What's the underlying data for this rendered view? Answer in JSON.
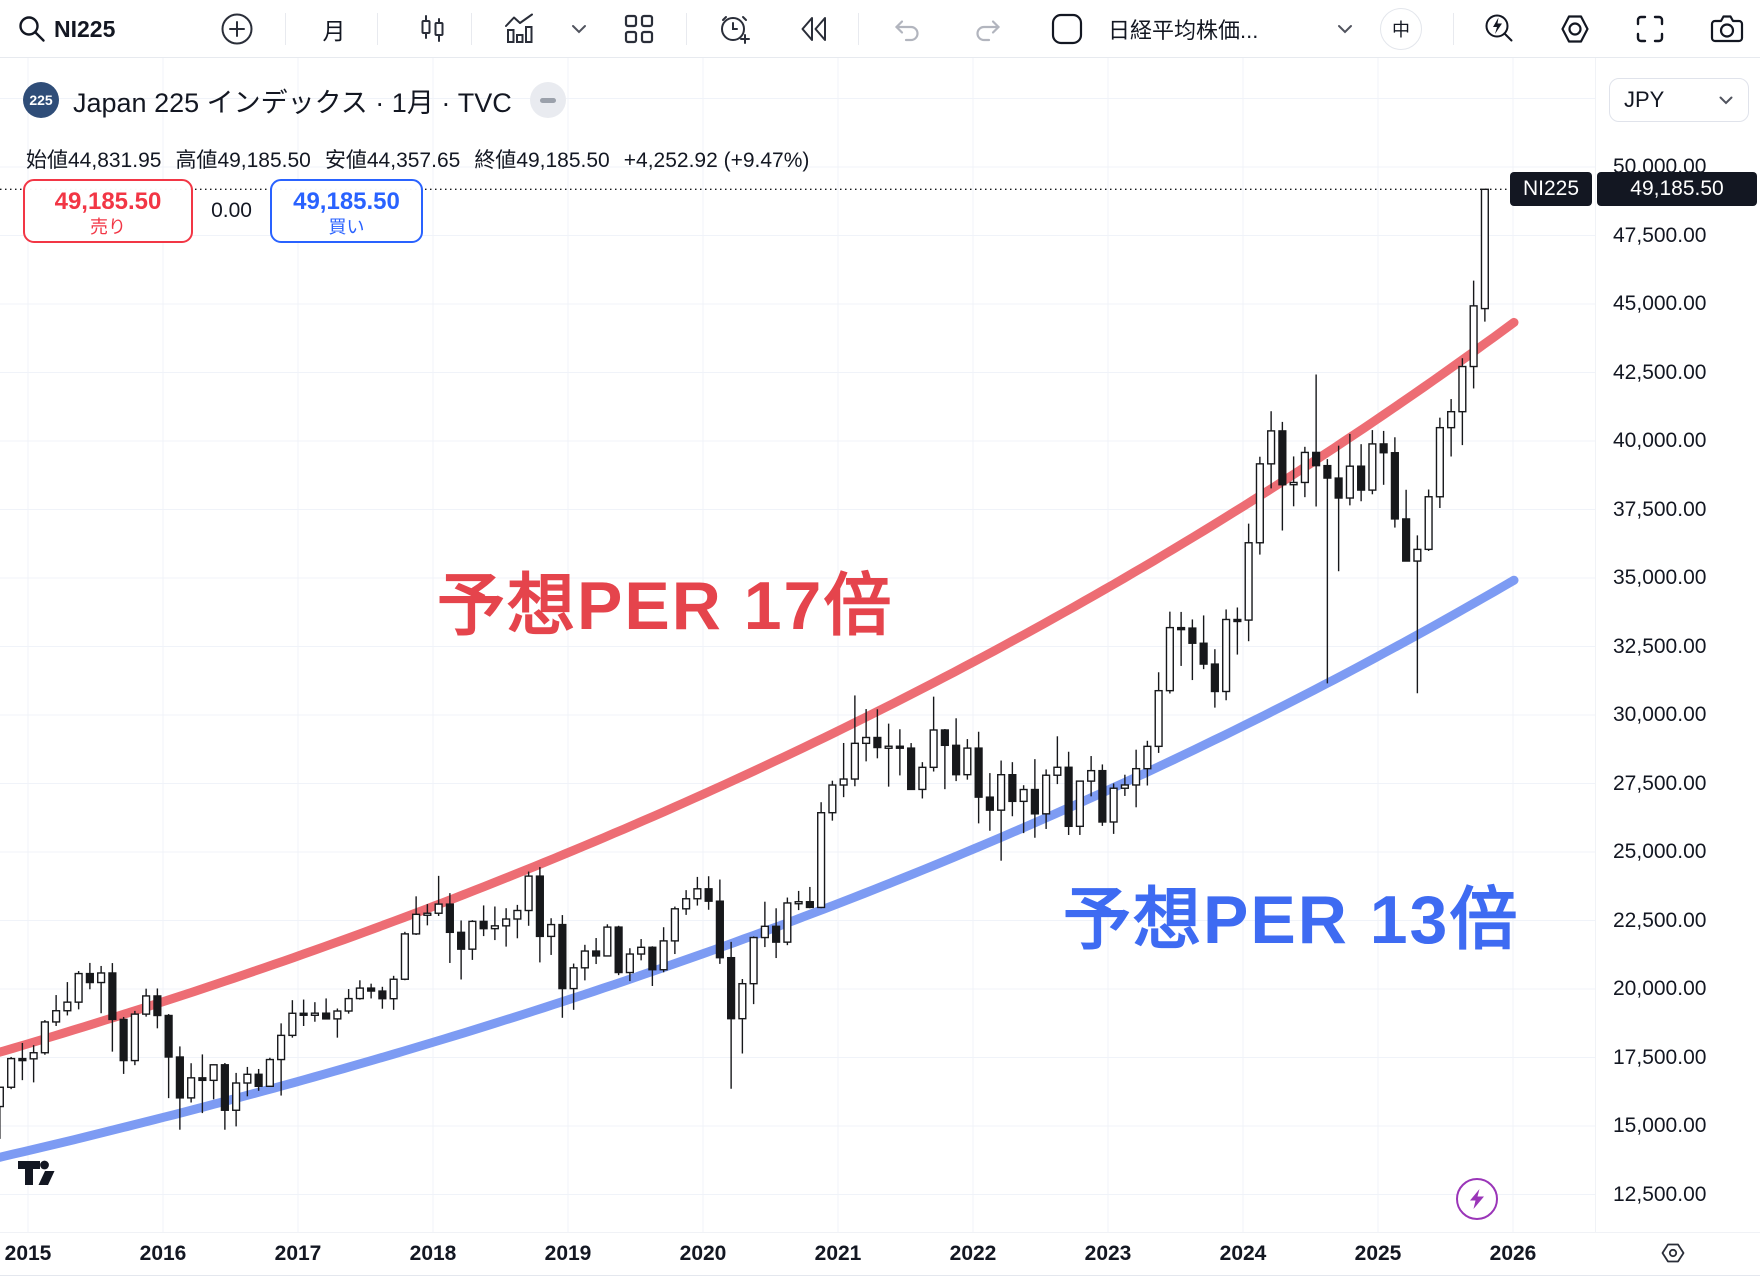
{
  "toolbar": {
    "symbol_search": "NI225",
    "interval": "月",
    "symbol_description": "日経平均株価...",
    "size_badge": "中"
  },
  "legend": {
    "badge": "225",
    "title": "Japan 225 インデックス · 1月 · TVC",
    "ohlc": {
      "open_label": "始値",
      "open": "44,831.95",
      "high_label": "高値",
      "high": "49,185.50",
      "low_label": "安値",
      "low": "44,357.65",
      "close_label": "終値",
      "close": "49,185.50",
      "change": "+4,252.92 (+9.47%)"
    }
  },
  "trade": {
    "sell_price": "49,185.50",
    "sell_label": "売り",
    "spread": "0.00",
    "buy_price": "49,185.50",
    "buy_label": "買い"
  },
  "price_axis": {
    "currency": "JPY",
    "ticks": [
      "50,000.00",
      "47,500.00",
      "45,000.00",
      "42,500.00",
      "40,000.00",
      "37,500.00",
      "35,000.00",
      "32,500.00",
      "30,000.00",
      "27,500.00",
      "25,000.00",
      "22,500.00",
      "20,000.00",
      "17,500.00",
      "15,000.00",
      "12,500.00"
    ],
    "tick_values": [
      50000,
      47500,
      45000,
      42500,
      40000,
      37500,
      35000,
      32500,
      30000,
      27500,
      25000,
      22500,
      20000,
      17500,
      15000,
      12500
    ],
    "last_price_tag": {
      "symbol": "NI225",
      "price": "49,185.50"
    }
  },
  "time_axis": {
    "years": [
      2015,
      2016,
      2017,
      2018,
      2019,
      2020,
      2021,
      2022,
      2023,
      2024,
      2025,
      2026
    ]
  },
  "annotations": {
    "per17": "予想PER 17倍",
    "per13": "予想PER 13倍"
  },
  "chart_data": {
    "type": "candlestick",
    "symbol": "NI225",
    "title": "Japan 225 インデックス · 1月 · TVC",
    "timeframe": "1 month",
    "currency": "JPY",
    "last_price": 49185.5,
    "y_range": [
      12500,
      52500
    ],
    "x_range_years": [
      2015,
      2026
    ],
    "grid": true,
    "candles_start_month": "2014-10",
    "candles": [
      [
        15710,
        16420,
        14529,
        16414
      ],
      [
        16414,
        17520,
        16345,
        17460
      ],
      [
        17460,
        18030,
        16673,
        17451
      ],
      [
        17451,
        17950,
        16592,
        17674
      ],
      [
        17674,
        18865,
        17600,
        18798
      ],
      [
        18798,
        19779,
        18650,
        19207
      ],
      [
        19207,
        20252,
        19035,
        19520
      ],
      [
        19520,
        20655,
        19257,
        20563
      ],
      [
        20563,
        20952,
        19990,
        20236
      ],
      [
        20236,
        20841,
        19115,
        20585
      ],
      [
        20585,
        20946,
        17714,
        18890
      ],
      [
        18890,
        18979,
        16901,
        17388
      ],
      [
        17388,
        19202,
        17220,
        19083
      ],
      [
        19083,
        20012,
        18991,
        19747
      ],
      [
        19747,
        20020,
        18565,
        19033
      ],
      [
        19033,
        19085,
        16017,
        17518
      ],
      [
        17518,
        17905,
        14865,
        16026
      ],
      [
        16026,
        17291,
        15857,
        16758
      ],
      [
        16758,
        17613,
        15471,
        16666
      ],
      [
        16666,
        17251,
        15975,
        17234
      ],
      [
        17234,
        17300,
        14864,
        15575
      ],
      [
        15575,
        16938,
        14985,
        16569
      ],
      [
        16569,
        17156,
        16083,
        16887
      ],
      [
        16887,
        17081,
        16285,
        16449
      ],
      [
        16449,
        17492,
        16436,
        17425
      ],
      [
        17425,
        18746,
        16111,
        18308
      ],
      [
        18308,
        19592,
        18224,
        19114
      ],
      [
        19114,
        19615,
        18650,
        19041
      ],
      [
        19041,
        19519,
        18805,
        19118
      ],
      [
        19118,
        19656,
        18909,
        18909
      ],
      [
        18909,
        19289,
        18224,
        19196
      ],
      [
        19196,
        19998,
        19100,
        19650
      ],
      [
        19650,
        20318,
        19610,
        20033
      ],
      [
        20033,
        20195,
        19655,
        19925
      ],
      [
        19925,
        20080,
        19280,
        19646
      ],
      [
        19646,
        20481,
        19239,
        20356
      ],
      [
        20356,
        22087,
        20320,
        22011
      ],
      [
        22011,
        23382,
        21972,
        22725
      ],
      [
        22725,
        23098,
        22323,
        22765
      ],
      [
        22765,
        24129,
        22665,
        23098
      ],
      [
        23098,
        23498,
        20950,
        22068
      ],
      [
        22068,
        22502,
        20347,
        21454
      ],
      [
        21454,
        22512,
        21062,
        22468
      ],
      [
        22468,
        23050,
        21931,
        22202
      ],
      [
        22202,
        23011,
        21785,
        22305
      ],
      [
        22305,
        22949,
        21547,
        22554
      ],
      [
        22554,
        23070,
        21851,
        22865
      ],
      [
        22865,
        24286,
        22307,
        24120
      ],
      [
        24120,
        24448,
        20971,
        21920
      ],
      [
        21920,
        22583,
        21243,
        22351
      ],
      [
        22351,
        22698,
        18949,
        20015
      ],
      [
        20015,
        20929,
        19241,
        20773
      ],
      [
        20773,
        21613,
        20315,
        21385
      ],
      [
        21385,
        21860,
        20911,
        21206
      ],
      [
        21206,
        22362,
        21193,
        22259
      ],
      [
        22259,
        22308,
        20506,
        20601
      ],
      [
        20601,
        21489,
        20289,
        21276
      ],
      [
        21276,
        21823,
        21046,
        21522
      ],
      [
        21522,
        21560,
        20110,
        20704
      ],
      [
        20704,
        22255,
        20610,
        21756
      ],
      [
        21756,
        23008,
        21276,
        22927
      ],
      [
        22927,
        23608,
        22705,
        23294
      ],
      [
        23294,
        24091,
        23045,
        23657
      ],
      [
        23657,
        24116,
        22892,
        23205
      ],
      [
        23205,
        23995,
        20916,
        21143
      ],
      [
        21143,
        21719,
        16358,
        18917
      ],
      [
        18917,
        20365,
        17646,
        20194
      ],
      [
        20194,
        21918,
        19448,
        21878
      ],
      [
        21878,
        23186,
        21530,
        22288
      ],
      [
        22288,
        22946,
        21130,
        21710
      ],
      [
        21710,
        23338,
        21600,
        23140
      ],
      [
        23140,
        23580,
        22880,
        23185
      ],
      [
        23185,
        23725,
        22948,
        22977
      ],
      [
        22977,
        26817,
        22949,
        26434
      ],
      [
        26434,
        27602,
        26144,
        27444
      ],
      [
        27444,
        28979,
        27002,
        27663
      ],
      [
        27663,
        30714,
        27400,
        28966
      ],
      [
        28966,
        30216,
        28308,
        29179
      ],
      [
        29179,
        30208,
        28419,
        28813
      ],
      [
        28813,
        29685,
        27385,
        28860
      ],
      [
        28860,
        29480,
        27795,
        28792
      ],
      [
        28792,
        28976,
        27283,
        27284
      ],
      [
        27284,
        28279,
        26954,
        28090
      ],
      [
        28090,
        30670,
        27937,
        29453
      ],
      [
        29453,
        29489,
        27293,
        28893
      ],
      [
        28893,
        29880,
        27588,
        27822
      ],
      [
        27822,
        29121,
        27640,
        28792
      ],
      [
        28792,
        29389,
        26045,
        27002
      ],
      [
        27002,
        27880,
        25775,
        26527
      ],
      [
        26527,
        28338,
        24682,
        27821
      ],
      [
        27821,
        28279,
        26305,
        26848
      ],
      [
        26848,
        27437,
        25689,
        27280
      ],
      [
        27280,
        28389,
        25520,
        26393
      ],
      [
        26393,
        28014,
        25841,
        27802
      ],
      [
        27802,
        29223,
        27478,
        28092
      ],
      [
        28092,
        28659,
        25621,
        25937
      ],
      [
        25937,
        27587,
        25622,
        27587
      ],
      [
        27587,
        28502,
        27032,
        27969
      ],
      [
        27969,
        28196,
        25953,
        26095
      ],
      [
        26095,
        27501,
        25661,
        27327
      ],
      [
        27327,
        27821,
        27046,
        27446
      ],
      [
        27446,
        28734,
        26632,
        28041
      ],
      [
        28041,
        29059,
        27427,
        28856
      ],
      [
        28856,
        31560,
        28616,
        30888
      ],
      [
        30888,
        33772,
        30785,
        33189
      ],
      [
        33189,
        33762,
        31791,
        33172
      ],
      [
        33172,
        33488,
        31275,
        32619
      ],
      [
        32619,
        33634,
        31674,
        31858
      ],
      [
        31858,
        32401,
        30269,
        30858
      ],
      [
        30858,
        33853,
        30538,
        33486
      ],
      [
        33486,
        33924,
        32205,
        33464
      ],
      [
        33464,
        36984,
        32693,
        36286
      ],
      [
        36286,
        39426,
        35854,
        39166
      ],
      [
        39166,
        41087,
        38271,
        40369
      ],
      [
        40369,
        40697,
        36733,
        38405
      ],
      [
        38405,
        39437,
        37617,
        38487
      ],
      [
        38487,
        39788,
        37950,
        39583
      ],
      [
        39583,
        42426,
        37611,
        39101
      ],
      [
        39101,
        39338,
        31156,
        38647
      ],
      [
        38647,
        39829,
        35247,
        37919
      ],
      [
        37919,
        40257,
        37651,
        39081
      ],
      [
        39081,
        39884,
        37801,
        38208
      ],
      [
        38208,
        40398,
        38055,
        39894
      ],
      [
        39894,
        40368,
        38401,
        39572
      ],
      [
        39572,
        40136,
        36840,
        37156
      ],
      [
        37156,
        38220,
        35617,
        35618
      ],
      [
        35618,
        36557,
        30792,
        36045
      ],
      [
        36045,
        38230,
        35986,
        37965
      ],
      [
        37965,
        40852,
        37555,
        40487
      ],
      [
        40487,
        41531,
        39434,
        41070
      ],
      [
        41070,
        43021,
        39850,
        42718
      ],
      [
        42718,
        45853,
        41918,
        44932
      ],
      [
        44832,
        49185.5,
        44357.65,
        49185.5
      ]
    ],
    "overlays": [
      {
        "name": "予想PER 17倍",
        "color": "#ed6d74",
        "growth": "exponential",
        "value_2015": 18000,
        "value_2026": 44300
      },
      {
        "name": "予想PER 13倍",
        "color": "#7d9bf3",
        "growth": "exponential",
        "value_2015": 14100,
        "value_2026": 34900
      }
    ],
    "up_candle": {
      "fill": "#ffffff",
      "border": "#17181b"
    },
    "down_candle": {
      "fill": "#17181b",
      "border": "#17181b"
    }
  }
}
